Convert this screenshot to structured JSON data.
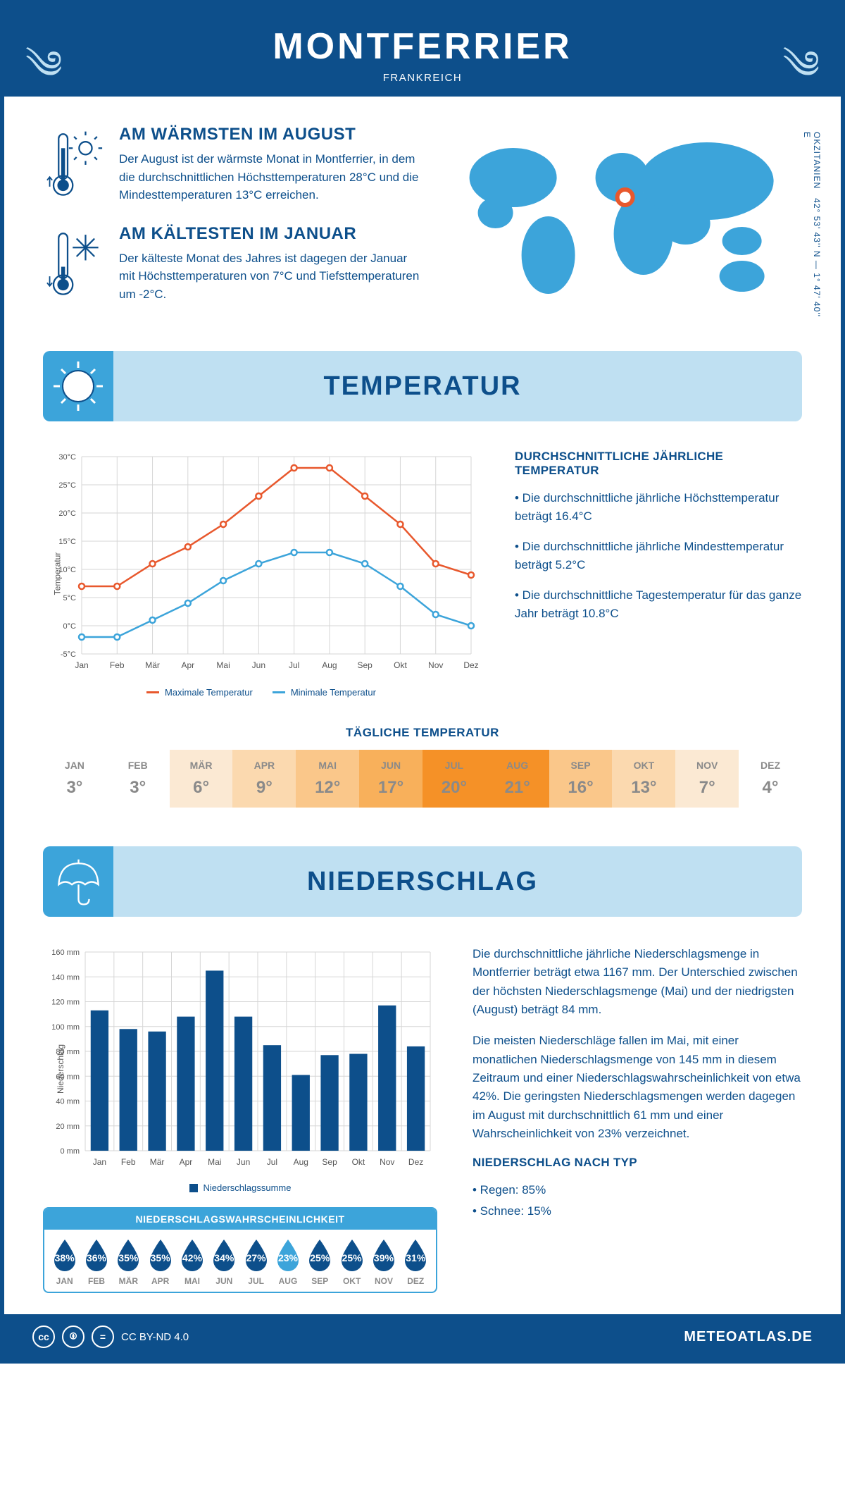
{
  "header": {
    "title": "MONTFERRIER",
    "subtitle": "FRANKREICH"
  },
  "coords": {
    "region": "OKZITANIEN",
    "lat": "42° 53' 43'' N",
    "lon": "1° 47' 40'' E"
  },
  "warm": {
    "title": "AM WÄRMSTEN IM AUGUST",
    "text": "Der August ist der wärmste Monat in Montferrier, in dem die durchschnittlichen Höchsttemperaturen 28°C und die Mindesttemperaturen 13°C erreichen."
  },
  "cold": {
    "title": "AM KÄLTESTEN IM JANUAR",
    "text": "Der kälteste Monat des Jahres ist dagegen der Januar mit Höchsttemperaturen von 7°C und Tiefsttemperaturen um -2°C."
  },
  "section_temp": "TEMPERATUR",
  "section_precip": "NIEDERSCHLAG",
  "temp_chart": {
    "type": "line",
    "ylabel": "Temperatur",
    "months": [
      "Jan",
      "Feb",
      "Mär",
      "Apr",
      "Mai",
      "Jun",
      "Jul",
      "Aug",
      "Sep",
      "Okt",
      "Nov",
      "Dez"
    ],
    "max_values": [
      7,
      7,
      11,
      14,
      18,
      23,
      28,
      28,
      23,
      18,
      11,
      9
    ],
    "min_values": [
      -2,
      -2,
      1,
      4,
      8,
      11,
      13,
      13,
      11,
      7,
      2,
      0
    ],
    "max_color": "#e8582d",
    "min_color": "#3ca4da",
    "ymin": -5,
    "ymax": 30,
    "ystep": 5,
    "grid_color": "#d6d6d6",
    "legend_max": "Maximale Temperatur",
    "legend_min": "Minimale Temperatur"
  },
  "temp_side": {
    "heading": "DURCHSCHNITTLICHE JÄHRLICHE TEMPERATUR",
    "b1": "• Die durchschnittliche jährliche Höchsttemperatur beträgt 16.4°C",
    "b2": "• Die durchschnittliche jährliche Mindesttemperatur beträgt 5.2°C",
    "b3": "• Die durchschnittliche Tagestemperatur für das ganze Jahr beträgt 10.8°C"
  },
  "daily": {
    "heading": "TÄGLICHE TEMPERATUR",
    "months": [
      "JAN",
      "FEB",
      "MÄR",
      "APR",
      "MAI",
      "JUN",
      "JUL",
      "AUG",
      "SEP",
      "OKT",
      "NOV",
      "DEZ"
    ],
    "values": [
      "3°",
      "3°",
      "6°",
      "9°",
      "12°",
      "17°",
      "20°",
      "21°",
      "16°",
      "13°",
      "7°",
      "4°"
    ],
    "colors": [
      "#ffffff",
      "#ffffff",
      "#fbe9d3",
      "#fbd9af",
      "#fac78a",
      "#f8b05b",
      "#f59127",
      "#f59127",
      "#fac78a",
      "#fbd9af",
      "#fbe9d3",
      "#ffffff"
    ]
  },
  "precip_chart": {
    "type": "bar",
    "ylabel": "Niederschlag",
    "months": [
      "Jan",
      "Feb",
      "Mär",
      "Apr",
      "Mai",
      "Jun",
      "Jul",
      "Aug",
      "Sep",
      "Okt",
      "Nov",
      "Dez"
    ],
    "values": [
      113,
      98,
      96,
      108,
      145,
      108,
      85,
      61,
      77,
      78,
      117,
      84
    ],
    "ymin": 0,
    "ymax": 160,
    "ystep": 20,
    "bar_color": "#0d4f8b",
    "grid_color": "#d6d6d6",
    "legend": "Niederschlagssumme"
  },
  "precip_text": {
    "p1": "Die durchschnittliche jährliche Niederschlagsmenge in Montferrier beträgt etwa 1167 mm. Der Unterschied zwischen der höchsten Niederschlagsmenge (Mai) und der niedrigsten (August) beträgt 84 mm.",
    "p2": "Die meisten Niederschläge fallen im Mai, mit einer monatlichen Niederschlagsmenge von 145 mm in diesem Zeitraum und einer Niederschlagswahrscheinlichkeit von etwa 42%. Die geringsten Niederschlagsmengen werden dagegen im August mit durchschnittlich 61 mm und einer Wahrscheinlichkeit von 23% verzeichnet.",
    "type_head": "NIEDERSCHLAG NACH TYP",
    "type_rain": "• Regen: 85%",
    "type_snow": "• Schnee: 15%"
  },
  "prob": {
    "heading": "NIEDERSCHLAGSWAHRSCHEINLICHKEIT",
    "months": [
      "JAN",
      "FEB",
      "MÄR",
      "APR",
      "MAI",
      "JUN",
      "JUL",
      "AUG",
      "SEP",
      "OKT",
      "NOV",
      "DEZ"
    ],
    "values": [
      "38%",
      "36%",
      "35%",
      "35%",
      "42%",
      "34%",
      "27%",
      "23%",
      "25%",
      "25%",
      "39%",
      "31%"
    ],
    "dark": "#0d4f8b",
    "light": "#3ca4da",
    "min_index": 7
  },
  "footer": {
    "license": "CC BY-ND 4.0",
    "brand": "METEOATLAS.DE"
  }
}
